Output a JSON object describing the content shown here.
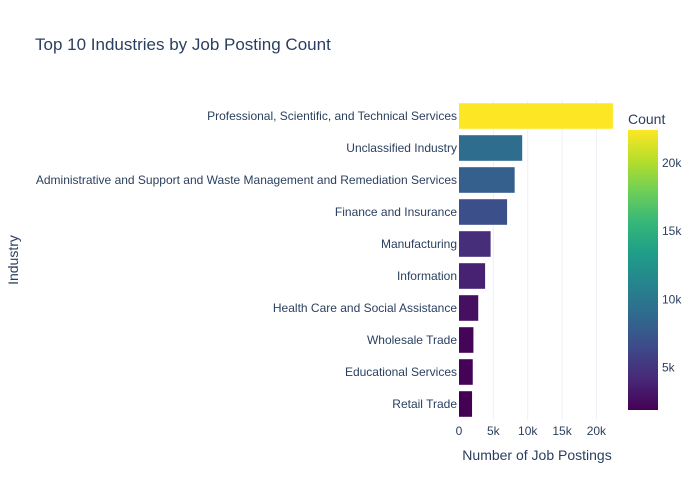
{
  "chart_data": {
    "type": "bar",
    "orientation": "horizontal",
    "title": "Top 10 Industries by Job Posting Count",
    "xlabel": "Number of Job Postings",
    "ylabel": "Industry",
    "xlim": [
      0,
      23000
    ],
    "x_ticks": [
      0,
      5000,
      10000,
      15000,
      20000
    ],
    "x_tick_labels": [
      "0",
      "5k",
      "10k",
      "15k",
      "20k"
    ],
    "categories": [
      "Professional, Scientific, and Technical Services",
      "Unclassified Industry",
      "Administrative and Support and Waste Management and Remediation Services",
      "Finance and Insurance",
      "Manufacturing",
      "Information",
      "Health Care and Social Assistance",
      "Wholesale Trade",
      "Educational Services",
      "Retail Trade"
    ],
    "values": [
      22400,
      9200,
      8100,
      7000,
      4600,
      3800,
      2800,
      2100,
      2000,
      1900
    ],
    "colorscale": "Viridis",
    "colorbar": {
      "title": "Count",
      "range": [
        1900,
        22400
      ],
      "ticks": [
        5000,
        10000,
        15000,
        20000
      ],
      "tick_labels": [
        "5k",
        "10k",
        "15k",
        "20k"
      ]
    },
    "grid": true,
    "legend": "none"
  }
}
